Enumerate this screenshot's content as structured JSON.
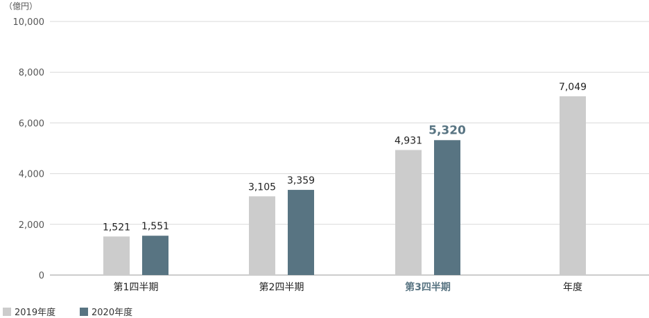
{
  "unit_label": "（億円）",
  "colors": {
    "series_2019": "#cccccc",
    "series_2020": "#587482",
    "grid": "#d9d9d9",
    "axis": "#999999",
    "highlight_text": "#587482"
  },
  "chart_data": {
    "type": "bar",
    "categories": [
      "第1四半期",
      "第2四半期",
      "第3四半期",
      "年度"
    ],
    "highlight_category": "第3四半期",
    "series": [
      {
        "name": "2019年度",
        "values": [
          1521,
          3105,
          4931,
          7049
        ],
        "labels": [
          "1,521",
          "3,105",
          "4,931",
          "7,049"
        ]
      },
      {
        "name": "2020年度",
        "values": [
          1551,
          3359,
          5320,
          null
        ],
        "labels": [
          "1,551",
          "3,359",
          "5,320",
          ""
        ]
      }
    ],
    "ylim": [
      0,
      10000
    ],
    "yticks": [
      0,
      2000,
      4000,
      6000,
      8000,
      10000
    ],
    "ytick_labels": [
      "0",
      "2,000",
      "4,000",
      "6,000",
      "8,000",
      "10,000"
    ],
    "grid": true,
    "legend_position": "bottom-left"
  }
}
